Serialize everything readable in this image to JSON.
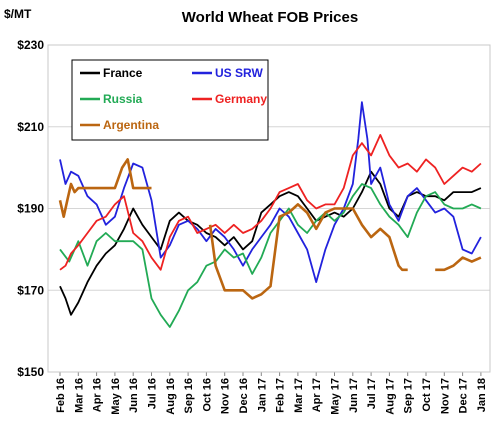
{
  "chart_data": {
    "type": "line",
    "title": "World Wheat FOB Prices",
    "ylabel": "$/MT",
    "xlabel": "",
    "ylim": [
      150,
      230
    ],
    "yticks": [
      "$150",
      "$170",
      "$190",
      "$210",
      "$230"
    ],
    "ytick_values": [
      150,
      170,
      190,
      210,
      230
    ],
    "grid": "horizontal",
    "legend_position": "top-left",
    "categories": [
      "Feb 16",
      "Mar 16",
      "Apr 16",
      "May 16",
      "Jun 16",
      "Jul 16",
      "Aug 16",
      "Sep 16",
      "Oct 16",
      "Nov 16",
      "Dec 16",
      "Jan 17",
      "Feb 17",
      "Mar 17",
      "Apr 17",
      "May 17",
      "Jun 17",
      "Jul 17",
      "Aug 17",
      "Sep 17",
      "Oct 17",
      "Nov 17",
      "Dec 17",
      "Jan 18"
    ],
    "series": [
      {
        "name": "France",
        "color": "#000000",
        "points": [
          [
            0,
            171
          ],
          [
            0.3,
            168
          ],
          [
            0.6,
            164
          ],
          [
            1,
            167
          ],
          [
            1.5,
            172
          ],
          [
            2,
            176
          ],
          [
            2.5,
            179
          ],
          [
            3,
            181
          ],
          [
            3.5,
            185
          ],
          [
            4,
            190
          ],
          [
            4.5,
            186
          ],
          [
            5,
            183
          ],
          [
            5.5,
            180
          ],
          [
            6,
            187
          ],
          [
            6.5,
            189
          ],
          [
            7,
            187
          ],
          [
            7.5,
            186
          ],
          [
            8,
            184
          ],
          [
            8.5,
            183
          ],
          [
            9,
            181
          ],
          [
            9.5,
            183
          ],
          [
            10,
            180
          ],
          [
            10.5,
            182
          ],
          [
            11,
            189
          ],
          [
            11.5,
            191
          ],
          [
            12,
            193
          ],
          [
            12.5,
            194
          ],
          [
            13,
            193
          ],
          [
            13.5,
            190
          ],
          [
            14,
            187
          ],
          [
            14.5,
            188
          ],
          [
            15,
            189
          ],
          [
            15.5,
            188
          ],
          [
            16,
            190
          ],
          [
            16.5,
            194
          ],
          [
            17,
            199
          ],
          [
            17.5,
            196
          ],
          [
            18,
            190
          ],
          [
            18.5,
            188
          ],
          [
            19,
            193
          ],
          [
            19.5,
            194
          ],
          [
            20,
            193
          ],
          [
            20.5,
            193
          ],
          [
            21,
            192
          ],
          [
            21.5,
            194
          ],
          [
            22,
            194
          ],
          [
            22.5,
            194
          ],
          [
            23,
            195
          ]
        ]
      },
      {
        "name": "US SRW",
        "color": "#2222dd",
        "points": [
          [
            0,
            202
          ],
          [
            0.3,
            196
          ],
          [
            0.6,
            199
          ],
          [
            1,
            198
          ],
          [
            1.5,
            193
          ],
          [
            2,
            191
          ],
          [
            2.5,
            186
          ],
          [
            3,
            188
          ],
          [
            3.5,
            195
          ],
          [
            4,
            201
          ],
          [
            4.5,
            200
          ],
          [
            5,
            192
          ],
          [
            5.5,
            178
          ],
          [
            6,
            181
          ],
          [
            6.5,
            186
          ],
          [
            7,
            187
          ],
          [
            7.5,
            185
          ],
          [
            8,
            182
          ],
          [
            8.5,
            185
          ],
          [
            9,
            183
          ],
          [
            9.5,
            180
          ],
          [
            10,
            176
          ],
          [
            10.5,
            180
          ],
          [
            11,
            183
          ],
          [
            11.5,
            186
          ],
          [
            12,
            190
          ],
          [
            12.5,
            188
          ],
          [
            13,
            184
          ],
          [
            13.5,
            180
          ],
          [
            14,
            172
          ],
          [
            14.5,
            180
          ],
          [
            15,
            186
          ],
          [
            15.5,
            190
          ],
          [
            16,
            196
          ],
          [
            16.3,
            207
          ],
          [
            16.5,
            216
          ],
          [
            16.8,
            207
          ],
          [
            17,
            196
          ],
          [
            17.5,
            200
          ],
          [
            18,
            191
          ],
          [
            18.5,
            187
          ],
          [
            19,
            193
          ],
          [
            19.5,
            195
          ],
          [
            20,
            192
          ],
          [
            20.5,
            189
          ],
          [
            21,
            190
          ],
          [
            21.5,
            188
          ],
          [
            22,
            180
          ],
          [
            22.5,
            179
          ],
          [
            23,
            183
          ]
        ]
      },
      {
        "name": "Russia",
        "color": "#22aa55",
        "points": [
          [
            0,
            180
          ],
          [
            0.5,
            177
          ],
          [
            1,
            182
          ],
          [
            1.5,
            176
          ],
          [
            2,
            182
          ],
          [
            2.5,
            184
          ],
          [
            3,
            182
          ],
          [
            3.5,
            182
          ],
          [
            4,
            182
          ],
          [
            4.5,
            180
          ],
          [
            5,
            168
          ],
          [
            5.5,
            164
          ],
          [
            6,
            161
          ],
          [
            6.5,
            165
          ],
          [
            7,
            170
          ],
          [
            7.5,
            172
          ],
          [
            8,
            176
          ],
          [
            8.5,
            177
          ],
          [
            9,
            180
          ],
          [
            9.5,
            178
          ],
          [
            10,
            179
          ],
          [
            10.5,
            174
          ],
          [
            11,
            178
          ],
          [
            11.5,
            184
          ],
          [
            12,
            187
          ],
          [
            12.5,
            190
          ],
          [
            13,
            186
          ],
          [
            13.5,
            184
          ],
          [
            14,
            187
          ],
          [
            14.5,
            189
          ],
          [
            15,
            187
          ],
          [
            15.5,
            189
          ],
          [
            16,
            193
          ],
          [
            16.5,
            196
          ],
          [
            17,
            195
          ],
          [
            17.5,
            191
          ],
          [
            18,
            188
          ],
          [
            18.5,
            186
          ],
          [
            19,
            183
          ],
          [
            19.5,
            189
          ],
          [
            20,
            193
          ],
          [
            20.5,
            194
          ],
          [
            21,
            191
          ],
          [
            21.5,
            190
          ],
          [
            22,
            190
          ],
          [
            22.5,
            191
          ],
          [
            23,
            190
          ]
        ]
      },
      {
        "name": "Germany",
        "color": "#ee2222",
        "points": [
          [
            0,
            175
          ],
          [
            0.3,
            176
          ],
          [
            0.6,
            179
          ],
          [
            1,
            181
          ],
          [
            1.5,
            184
          ],
          [
            2,
            187
          ],
          [
            2.5,
            188
          ],
          [
            3,
            191
          ],
          [
            3.5,
            193
          ],
          [
            4,
            184
          ],
          [
            4.5,
            182
          ],
          [
            5,
            178
          ],
          [
            5.5,
            175
          ],
          [
            6,
            183
          ],
          [
            6.5,
            187
          ],
          [
            7,
            188
          ],
          [
            7.5,
            184
          ],
          [
            8,
            185
          ],
          [
            8.5,
            186
          ],
          [
            9,
            184
          ],
          [
            9.5,
            186
          ],
          [
            10,
            184
          ],
          [
            10.5,
            185
          ],
          [
            11,
            187
          ],
          [
            11.5,
            190
          ],
          [
            12,
            194
          ],
          [
            12.5,
            195
          ],
          [
            13,
            196
          ],
          [
            13.5,
            192
          ],
          [
            14,
            190
          ],
          [
            14.5,
            191
          ],
          [
            15,
            191
          ],
          [
            15.5,
            195
          ],
          [
            16,
            203
          ],
          [
            16.5,
            206
          ],
          [
            17,
            203
          ],
          [
            17.5,
            208
          ],
          [
            18,
            203
          ],
          [
            18.5,
            200
          ],
          [
            19,
            201
          ],
          [
            19.5,
            199
          ],
          [
            20,
            202
          ],
          [
            20.5,
            200
          ],
          [
            21,
            196
          ],
          [
            21.5,
            198
          ],
          [
            22,
            200
          ],
          [
            22.5,
            199
          ],
          [
            23,
            201
          ]
        ]
      },
      {
        "name": "Argentina",
        "color": "#bb6611",
        "points": [
          [
            0,
            192
          ],
          [
            0.2,
            188
          ],
          [
            0.4,
            192
          ],
          [
            0.6,
            196
          ],
          [
            0.8,
            194
          ],
          [
            1,
            195
          ],
          [
            1.5,
            195
          ],
          [
            2,
            195
          ],
          [
            2.5,
            195
          ],
          [
            3,
            195
          ],
          [
            3.4,
            200
          ],
          [
            3.7,
            202
          ],
          [
            4,
            195
          ],
          [
            4.5,
            195
          ],
          [
            5,
            195
          ],
          null,
          [
            8.2,
            186
          ],
          [
            8.5,
            176
          ],
          [
            9,
            170
          ],
          [
            9.5,
            170
          ],
          [
            10,
            170
          ],
          [
            10.5,
            168
          ],
          [
            11,
            169
          ],
          [
            11.5,
            171
          ],
          [
            12,
            188
          ],
          [
            12.5,
            189
          ],
          [
            13,
            191
          ],
          [
            13.5,
            189
          ],
          [
            14,
            185
          ],
          [
            14.5,
            189
          ],
          [
            15,
            190
          ],
          [
            15.5,
            190
          ],
          [
            16,
            190
          ],
          [
            16.5,
            186
          ],
          [
            17,
            183
          ],
          [
            17.5,
            185
          ],
          [
            18,
            183
          ],
          [
            18.5,
            176
          ],
          [
            18.7,
            175
          ],
          [
            19,
            175
          ],
          null,
          [
            20.5,
            175
          ],
          [
            21,
            175
          ],
          [
            21.5,
            176
          ],
          [
            22,
            178
          ],
          [
            22.5,
            177
          ],
          [
            23,
            178
          ]
        ]
      }
    ]
  }
}
